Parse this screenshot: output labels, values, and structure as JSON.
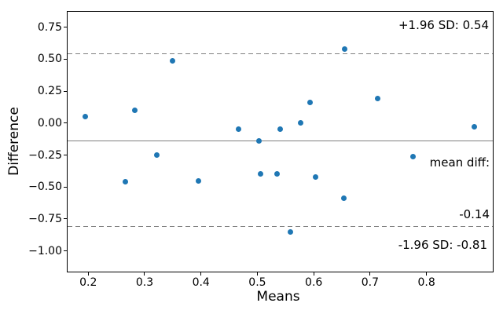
{
  "chart_data": {
    "type": "scatter",
    "title": "",
    "xlabel": "Means",
    "ylabel": "Difference",
    "grid": false,
    "legend": "none",
    "marker_color": "#1f77b4",
    "refline_color": "#7f7f7f",
    "spine_color": "#000000",
    "xlim": [
      0.162,
      0.919
    ],
    "ylim": [
      -1.168,
      0.877
    ],
    "x_ticks": [
      0.2,
      0.3,
      0.4,
      0.5,
      0.6,
      0.7,
      0.8
    ],
    "x_tick_labels": [
      "0.2",
      "0.3",
      "0.4",
      "0.5",
      "0.6",
      "0.7",
      "0.8"
    ],
    "y_ticks": [
      0.75,
      0.5,
      0.25,
      0.0,
      -0.25,
      -0.5,
      -0.75,
      -1.0
    ],
    "y_tick_labels": [
      "0.75",
      "0.50",
      "0.25",
      "0.00",
      "−0.25",
      "−0.50",
      "−0.75",
      "−1.00"
    ],
    "points": [
      {
        "x": 0.195,
        "y": 0.05
      },
      {
        "x": 0.266,
        "y": -0.46
      },
      {
        "x": 0.283,
        "y": 0.1
      },
      {
        "x": 0.322,
        "y": -0.25
      },
      {
        "x": 0.349,
        "y": 0.49
      },
      {
        "x": 0.395,
        "y": -0.45
      },
      {
        "x": 0.467,
        "y": -0.05
      },
      {
        "x": 0.503,
        "y": -0.14
      },
      {
        "x": 0.506,
        "y": -0.4
      },
      {
        "x": 0.535,
        "y": -0.4
      },
      {
        "x": 0.54,
        "y": -0.05
      },
      {
        "x": 0.558,
        "y": -0.85
      },
      {
        "x": 0.577,
        "y": 0.0
      },
      {
        "x": 0.593,
        "y": 0.16
      },
      {
        "x": 0.603,
        "y": -0.42
      },
      {
        "x": 0.654,
        "y": -0.59
      },
      {
        "x": 0.655,
        "y": 0.58
      },
      {
        "x": 0.713,
        "y": 0.19
      },
      {
        "x": 0.776,
        "y": -0.26
      },
      {
        "x": 0.885,
        "y": -0.03
      }
    ],
    "reflines": [
      {
        "name": "upper-loa-line",
        "value": 0.54,
        "style": "dashed"
      },
      {
        "name": "mean-line",
        "value": -0.14,
        "style": "solid"
      },
      {
        "name": "lower-loa-line",
        "value": -0.81,
        "style": "dashed"
      }
    ],
    "annotations": {
      "upper": "+1.96 SD: 0.54",
      "mean_line1": "mean diff:",
      "mean_line2": "-0.14",
      "lower": "-1.96 SD: -0.81"
    }
  }
}
